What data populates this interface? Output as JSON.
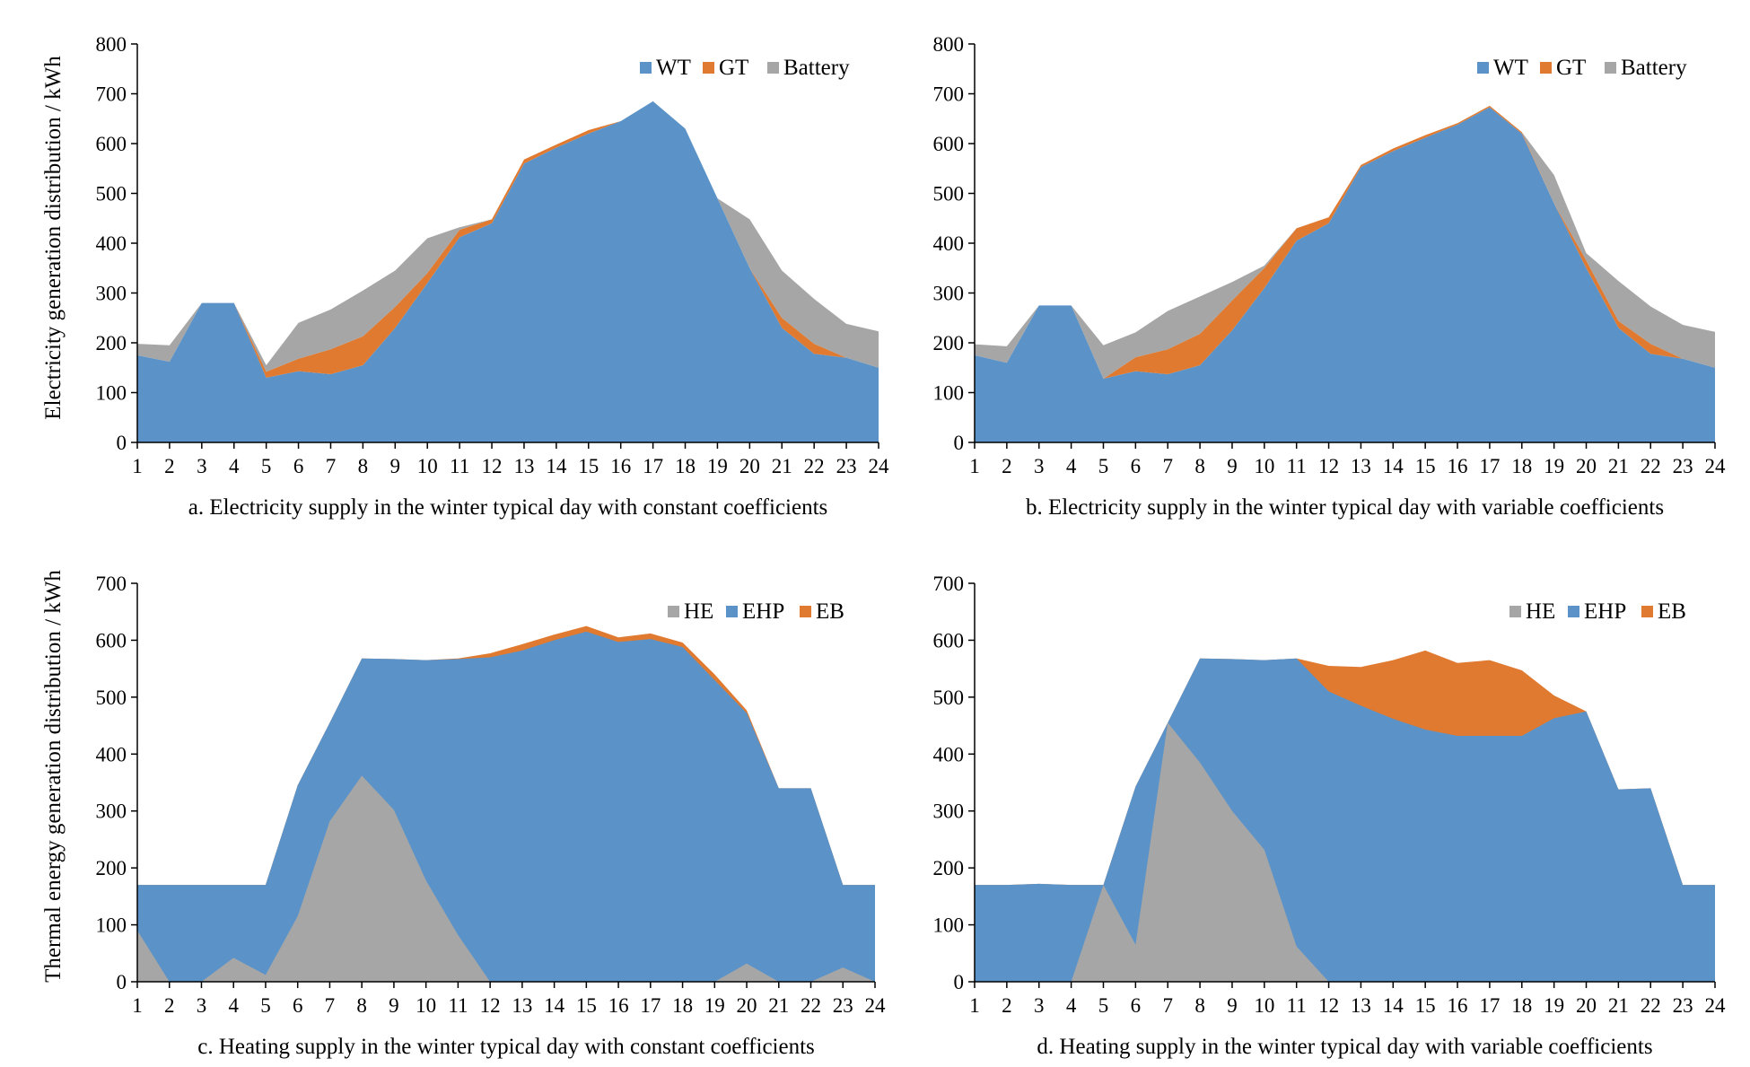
{
  "figure": {
    "ylabel_top": "Electricity generation distribution / kWh",
    "ylabel_bottom": "Thermal energy generation distribution / kWh"
  },
  "chart_data": [
    {
      "id": "a",
      "type": "area",
      "stacked": true,
      "caption": "a. Electricity supply in the winter typical day with constant coefficients",
      "xlabel": "",
      "ylabel": "Electricity generation distribution / kWh",
      "categories": [
        "1",
        "2",
        "3",
        "4",
        "5",
        "6",
        "7",
        "8",
        "9",
        "10",
        "11",
        "12",
        "13",
        "14",
        "15",
        "16",
        "17",
        "18",
        "19",
        "20",
        "21",
        "22",
        "23",
        "24"
      ],
      "ylim": [
        0,
        800
      ],
      "yticks": [
        0,
        100,
        200,
        300,
        400,
        500,
        600,
        700,
        800
      ],
      "legend_position": "top-right",
      "series": [
        {
          "name": "WT",
          "color": "#5b93c9",
          "values": [
            175,
            162,
            280,
            280,
            130,
            143,
            137,
            155,
            230,
            320,
            412,
            440,
            560,
            592,
            620,
            645,
            685,
            630,
            490,
            350,
            230,
            178,
            170,
            150
          ]
        },
        {
          "name": "GT",
          "color": "#e07a30",
          "values": [
            0,
            0,
            0,
            0,
            12,
            25,
            50,
            58,
            42,
            20,
            15,
            8,
            8,
            6,
            7,
            0,
            0,
            0,
            0,
            0,
            20,
            20,
            0,
            0
          ]
        },
        {
          "name": "Battery",
          "color": "#a6a6a6",
          "values": [
            23,
            33,
            0,
            0,
            13,
            72,
            80,
            92,
            73,
            70,
            5,
            0,
            0,
            0,
            0,
            0,
            0,
            0,
            0,
            98,
            95,
            90,
            68,
            73
          ]
        }
      ]
    },
    {
      "id": "b",
      "type": "area",
      "stacked": true,
      "caption": "b. Electricity supply in the winter typical day with variable coefficients",
      "xlabel": "",
      "ylabel": "",
      "categories": [
        "1",
        "2",
        "3",
        "4",
        "5",
        "6",
        "7",
        "8",
        "9",
        "10",
        "11",
        "12",
        "13",
        "14",
        "15",
        "16",
        "17",
        "18",
        "19",
        "20",
        "21",
        "22",
        "23",
        "24"
      ],
      "ylim": [
        0,
        800
      ],
      "yticks": [
        0,
        100,
        200,
        300,
        400,
        500,
        600,
        700,
        800
      ],
      "legend_position": "top-right",
      "series": [
        {
          "name": "WT",
          "color": "#5b93c9",
          "values": [
            175,
            160,
            275,
            275,
            128,
            143,
            137,
            155,
            225,
            310,
            405,
            440,
            553,
            585,
            612,
            638,
            673,
            620,
            480,
            350,
            230,
            178,
            168,
            150
          ]
        },
        {
          "name": "GT",
          "color": "#e07a30",
          "values": [
            0,
            0,
            0,
            0,
            0,
            28,
            50,
            63,
            60,
            40,
            25,
            12,
            4,
            5,
            5,
            3,
            3,
            3,
            0,
            15,
            14,
            20,
            0,
            0
          ]
        },
        {
          "name": "Battery",
          "color": "#a6a6a6",
          "values": [
            22,
            33,
            0,
            0,
            67,
            50,
            77,
            75,
            37,
            5,
            0,
            0,
            0,
            0,
            0,
            0,
            0,
            0,
            57,
            15,
            80,
            75,
            68,
            72
          ]
        }
      ]
    },
    {
      "id": "c",
      "type": "area",
      "stacked": false,
      "caption": "c. Heating supply in the winter typical day with constant coefficients",
      "xlabel": "",
      "ylabel": "Thermal energy generation distribution / kWh",
      "categories": [
        "1",
        "2",
        "3",
        "4",
        "5",
        "6",
        "7",
        "8",
        "9",
        "10",
        "11",
        "12",
        "13",
        "14",
        "15",
        "16",
        "17",
        "18",
        "19",
        "20",
        "21",
        "22",
        "23",
        "24"
      ],
      "ylim": [
        0,
        700
      ],
      "yticks": [
        0,
        100,
        200,
        300,
        400,
        500,
        600,
        700
      ],
      "legend_position": "top-right",
      "series": [
        {
          "name": "HE",
          "color": "#a6a6a6",
          "values": [
            90,
            0,
            0,
            42,
            12,
            115,
            282,
            362,
            302,
            178,
            82,
            0,
            0,
            0,
            0,
            0,
            0,
            0,
            0,
            32,
            0,
            0,
            25,
            0
          ]
        },
        {
          "name": "EHP",
          "color": "#5b93c9",
          "values": [
            170,
            170,
            170,
            170,
            170,
            345,
            455,
            568,
            567,
            565,
            567,
            570,
            582,
            600,
            615,
            597,
            602,
            588,
            530,
            472,
            340,
            340,
            170,
            170
          ]
        },
        {
          "name": "EB",
          "color": "#e07a30",
          "values": [
            170,
            170,
            170,
            170,
            170,
            345,
            455,
            568,
            567,
            565,
            568,
            577,
            593,
            610,
            625,
            605,
            612,
            596,
            540,
            477,
            340,
            340,
            170,
            170
          ]
        }
      ]
    },
    {
      "id": "d",
      "type": "area",
      "stacked": false,
      "caption": "d. Heating supply in the winter typical day with variable coefficients",
      "xlabel": "",
      "ylabel": "",
      "categories": [
        "1",
        "2",
        "3",
        "4",
        "5",
        "6",
        "7",
        "8",
        "9",
        "10",
        "11",
        "12",
        "13",
        "14",
        "15",
        "16",
        "17",
        "18",
        "19",
        "20",
        "21",
        "22",
        "23",
        "24"
      ],
      "ylim": [
        0,
        700
      ],
      "yticks": [
        0,
        100,
        200,
        300,
        400,
        500,
        600,
        700
      ],
      "legend_position": "top-right",
      "series": [
        {
          "name": "HE",
          "color": "#a6a6a6",
          "values": [
            0,
            0,
            0,
            0,
            170,
            65,
            455,
            385,
            300,
            232,
            62,
            0,
            0,
            0,
            0,
            0,
            0,
            0,
            0,
            0,
            0,
            0,
            0,
            0
          ]
        },
        {
          "name": "EHP",
          "color": "#5b93c9",
          "values": [
            170,
            170,
            172,
            170,
            170,
            343,
            455,
            568,
            567,
            565,
            568,
            510,
            485,
            462,
            443,
            432,
            432,
            432,
            463,
            475,
            338,
            340,
            170,
            170
          ]
        },
        {
          "name": "EB",
          "color": "#e07a30",
          "values": [
            170,
            170,
            172,
            170,
            170,
            343,
            455,
            568,
            567,
            565,
            568,
            555,
            553,
            565,
            582,
            560,
            565,
            547,
            503,
            475,
            338,
            340,
            170,
            170
          ]
        }
      ]
    }
  ]
}
